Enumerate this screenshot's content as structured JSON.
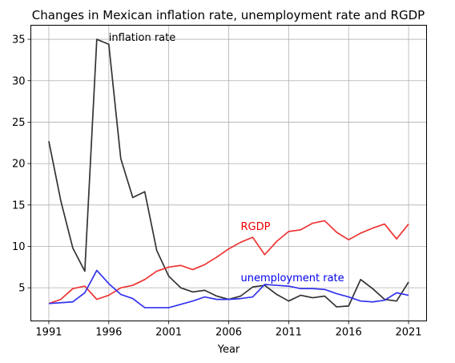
{
  "chart_data": {
    "type": "line",
    "title": "Changes in Mexican inflation rate, unemployment rate and RGDP",
    "xlabel": "Year",
    "ylabel": "",
    "x": [
      1991,
      1992,
      1993,
      1994,
      1995,
      1996,
      1997,
      1998,
      1999,
      2000,
      2001,
      2002,
      2003,
      2004,
      2005,
      2006,
      2007,
      2008,
      2009,
      2010,
      2011,
      2012,
      2013,
      2014,
      2015,
      2016,
      2017,
      2018,
      2019,
      2020,
      2021
    ],
    "xlim": [
      1989.5,
      2022.5
    ],
    "ylim": [
      1.0,
      36.7
    ],
    "xticks": [
      1991,
      1996,
      2001,
      2006,
      2011,
      2016,
      2021
    ],
    "yticks": [
      5,
      10,
      15,
      20,
      25,
      30,
      35
    ],
    "grid": true,
    "series": [
      {
        "key": "inflation",
        "color": "#333333",
        "values": [
          22.7,
          15.5,
          9.8,
          7.0,
          35.0,
          34.4,
          20.6,
          15.9,
          16.6,
          9.5,
          6.4,
          5.0,
          4.5,
          4.7,
          4.0,
          3.6,
          4.0,
          5.1,
          5.3,
          4.2,
          3.4,
          4.1,
          3.8,
          4.0,
          2.7,
          2.8,
          6.0,
          4.9,
          3.6,
          3.4,
          5.7
        ]
      },
      {
        "key": "rgdp",
        "color": "#ee3333",
        "values": [
          3.1,
          3.6,
          4.9,
          5.2,
          3.6,
          4.1,
          5.0,
          5.3,
          6.0,
          7.0,
          7.5,
          7.7,
          7.2,
          7.8,
          8.7,
          9.7,
          10.5,
          11.1,
          9.0,
          10.6,
          11.8,
          12.0,
          12.8,
          13.1,
          11.7,
          10.8,
          11.6,
          12.2,
          12.7,
          10.9,
          12.7
        ]
      },
      {
        "key": "unemployment",
        "color": "#3333ee",
        "values": [
          3.1,
          3.2,
          3.3,
          4.4,
          7.1,
          5.5,
          4.2,
          3.7,
          2.6,
          2.6,
          2.6,
          3.0,
          3.4,
          3.9,
          3.6,
          3.6,
          3.7,
          3.9,
          5.4,
          5.3,
          5.2,
          4.9,
          4.9,
          4.8,
          4.3,
          3.9,
          3.4,
          3.3,
          3.5,
          4.4,
          4.1
        ]
      }
    ],
    "annotations": [
      {
        "key": "inflation_label",
        "text": "inflation rate",
        "x": 1996,
        "y": 34.8,
        "color": "#000000"
      },
      {
        "key": "rgdp_label",
        "text": "RGDP",
        "x": 2007,
        "y": 12.0,
        "color": "#ee0000"
      },
      {
        "key": "unemployment_label",
        "text": "unemployment rate",
        "x": 2007,
        "y": 5.8,
        "color": "#0000ee"
      }
    ]
  }
}
